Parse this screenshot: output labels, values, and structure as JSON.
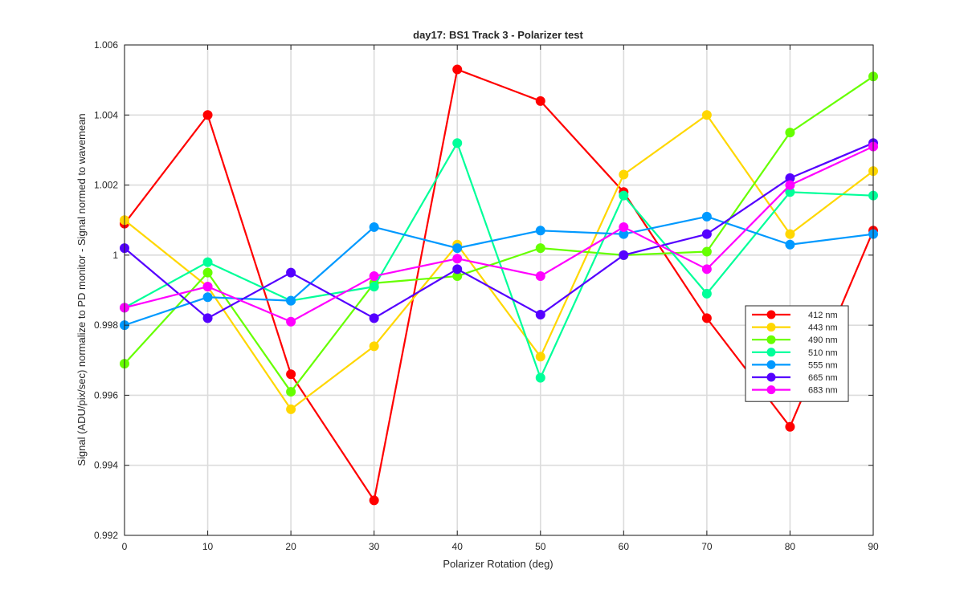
{
  "chart_data": {
    "type": "line",
    "title": "day17: BS1  Track 3 - Polarizer test",
    "xlabel": "Polarizer Rotation (deg)",
    "ylabel": "Signal (ADU/pix/sec) normalize to PD monitor - Signal normed to wavemean",
    "xlim": [
      0,
      90
    ],
    "ylim": [
      0.992,
      1.006
    ],
    "x": [
      0,
      10,
      20,
      30,
      40,
      50,
      60,
      70,
      80,
      90
    ],
    "xticks": [
      0,
      10,
      20,
      30,
      40,
      50,
      60,
      70,
      80,
      90
    ],
    "xtick_labels": [
      "0",
      "10",
      "20",
      "30",
      "40",
      "50",
      "60",
      "70",
      "80",
      "90"
    ],
    "yticks": [
      0.992,
      0.994,
      0.996,
      0.998,
      1.0,
      1.002,
      1.004,
      1.006
    ],
    "ytick_labels": [
      "0.992",
      "0.994",
      "0.996",
      "0.998",
      "1",
      "1.002",
      "1.004",
      "1.006"
    ],
    "grid": true,
    "legend_position": "right-middle",
    "series": [
      {
        "name": "412 nm",
        "color": "#ff0000",
        "values": [
          1.0009,
          1.004,
          0.9966,
          0.993,
          1.0053,
          1.0044,
          1.0018,
          0.9982,
          0.9951,
          1.0007
        ]
      },
      {
        "name": "443 nm",
        "color": "#ffd700",
        "values": [
          1.001,
          0.9991,
          0.9956,
          0.9974,
          1.0003,
          0.9971,
          1.0023,
          1.004,
          1.0006,
          1.0024
        ]
      },
      {
        "name": "490 nm",
        "color": "#66ff00",
        "values": [
          0.9969,
          0.9995,
          0.9961,
          0.9992,
          0.9994,
          1.0002,
          1.0,
          1.0001,
          1.0035,
          1.0051
        ]
      },
      {
        "name": "510 nm",
        "color": "#00ff99",
        "values": [
          0.9985,
          0.9998,
          0.9987,
          0.9991,
          1.0032,
          0.9965,
          1.0017,
          0.9989,
          1.0018,
          1.0017
        ]
      },
      {
        "name": "555 nm",
        "color": "#0099ff",
        "values": [
          0.998,
          0.9988,
          0.9987,
          1.0008,
          1.0002,
          1.0007,
          1.0006,
          1.0011,
          1.0003,
          1.0006
        ]
      },
      {
        "name": "665 nm",
        "color": "#5500ff",
        "values": [
          1.0002,
          0.9982,
          0.9995,
          0.9982,
          0.9996,
          0.9983,
          1.0,
          1.0006,
          1.0022,
          1.0032
        ]
      },
      {
        "name": "683 nm",
        "color": "#ff00ff",
        "values": [
          0.9985,
          0.9991,
          0.9981,
          0.9994,
          0.9999,
          0.9994,
          1.0008,
          0.9996,
          1.002,
          1.0031
        ]
      }
    ]
  }
}
